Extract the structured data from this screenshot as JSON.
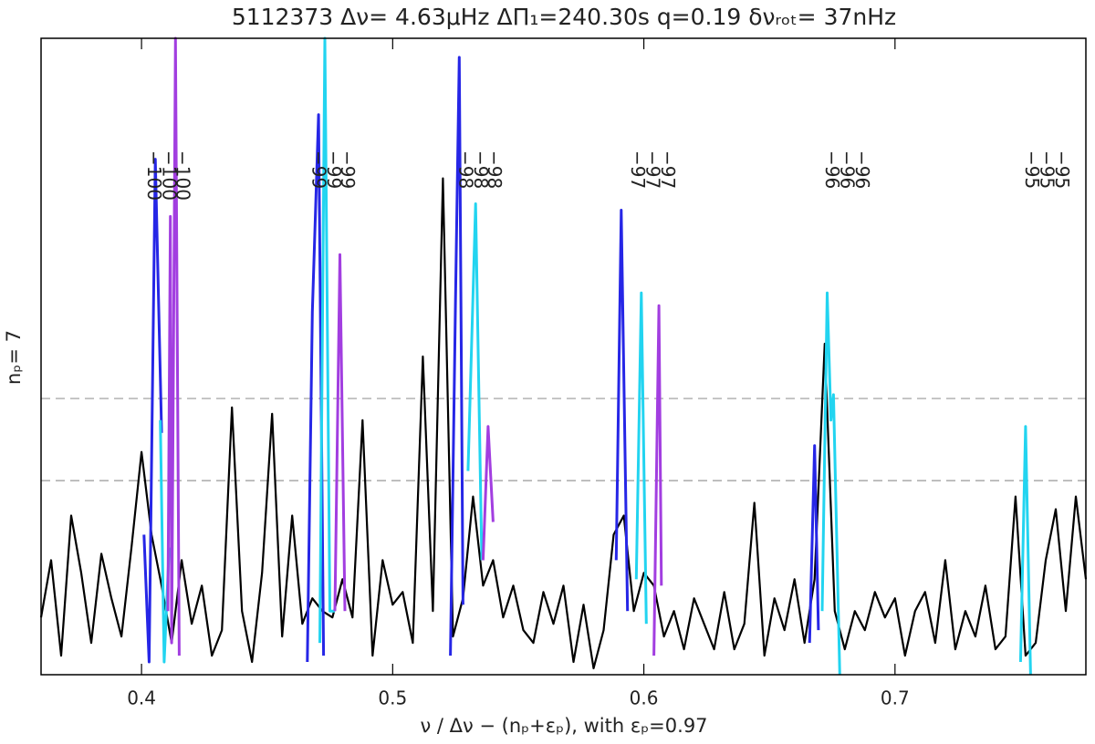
{
  "chart_data": {
    "type": "line",
    "title": "5112373 Δν= 4.63μHz ΔΠ₁=240.30s q=0.19 δνᵣₒₜ= 37nHz",
    "x_label": "ν / Δν − (nₚ+εₚ),  with εₚ=0.97",
    "y_label": "nₚ= 7",
    "xlim": [
      0.36,
      0.776
    ],
    "xticks": [
      0.4,
      0.5,
      0.6,
      0.7
    ],
    "ylim": [
      0,
      100
    ],
    "hlines": [
      43.4,
      30.5
    ],
    "series": [
      {
        "color": "#000000",
        "x": [
          0.36,
          0.364,
          0.368,
          0.372,
          0.376,
          0.38,
          0.384,
          0.388,
          0.392,
          0.396,
          0.4,
          0.404,
          0.408,
          0.412,
          0.416,
          0.42,
          0.424,
          0.428,
          0.432,
          0.436,
          0.44,
          0.444,
          0.448,
          0.452,
          0.456,
          0.46,
          0.464,
          0.468,
          0.472,
          0.476,
          0.48,
          0.484,
          0.488,
          0.492,
          0.496,
          0.5,
          0.504,
          0.508,
          0.512,
          0.516,
          0.52,
          0.524,
          0.528,
          0.532,
          0.536,
          0.54,
          0.544,
          0.548,
          0.552,
          0.556,
          0.56,
          0.564,
          0.568,
          0.572,
          0.576,
          0.58,
          0.584,
          0.588,
          0.592,
          0.596,
          0.6,
          0.604,
          0.608,
          0.612,
          0.616,
          0.62,
          0.624,
          0.628,
          0.632,
          0.636,
          0.64,
          0.644,
          0.648,
          0.652,
          0.656,
          0.66,
          0.664,
          0.668,
          0.672,
          0.676,
          0.68,
          0.684,
          0.688,
          0.692,
          0.696,
          0.7,
          0.704,
          0.708,
          0.712,
          0.716,
          0.72,
          0.724,
          0.728,
          0.732,
          0.736,
          0.74,
          0.744,
          0.748,
          0.752,
          0.756,
          0.76,
          0.764,
          0.768,
          0.772,
          0.776
        ],
        "values": [
          9,
          18,
          3,
          25,
          16,
          5,
          19,
          12,
          6,
          20,
          35,
          22,
          14,
          5,
          18,
          8,
          14,
          3,
          7,
          42,
          10,
          2,
          16,
          41,
          6,
          25,
          8,
          12,
          10,
          9,
          15,
          9,
          40,
          3,
          18,
          11,
          13,
          5,
          50,
          10,
          78,
          6,
          12,
          28,
          14,
          18,
          9,
          14,
          7,
          5,
          13,
          8,
          14,
          2,
          11,
          1,
          7,
          22,
          25,
          10,
          16,
          14,
          6,
          10,
          4,
          12,
          8,
          4,
          13,
          4,
          8,
          27,
          3,
          12,
          7,
          15,
          5,
          15,
          52,
          10,
          4,
          10,
          7,
          13,
          9,
          12,
          3,
          10,
          13,
          5,
          18,
          4,
          10,
          6,
          14,
          4,
          6,
          28,
          3,
          5,
          18,
          26,
          10,
          28,
          15
        ]
      },
      {
        "color": "#2626e6",
        "x": [
          0.401,
          0.403,
          0.4055,
          0.408,
          0.44,
          0.466,
          0.468,
          0.4705,
          0.4725,
          0.5,
          0.523,
          0.525,
          0.5265,
          0.528,
          0.56,
          0.589,
          0.591,
          0.5935,
          0.63,
          0.666,
          0.668,
          0.6695
        ],
        "values": [
          22,
          2,
          81,
          38,
          null,
          2,
          57,
          88,
          3,
          null,
          3,
          58,
          97,
          11,
          null,
          18,
          73,
          10,
          null,
          5,
          36,
          7
        ]
      },
      {
        "color": "#22d4f0",
        "x": [
          0.4075,
          0.409,
          0.411,
          0.44,
          0.471,
          0.473,
          0.475,
          0.477,
          0.5,
          0.53,
          0.533,
          0.5355,
          0.56,
          0.597,
          0.599,
          0.601,
          0.63,
          0.671,
          0.673,
          0.6745,
          0.6755,
          0.678,
          0.71,
          0.75,
          0.752,
          0.754
        ],
        "values": [
          40,
          2,
          20,
          null,
          5,
          100,
          10,
          10,
          null,
          32,
          74,
          18,
          null,
          15,
          60,
          8,
          null,
          10,
          60,
          40,
          44,
          0,
          null,
          2,
          39,
          0
        ]
      },
      {
        "color": "#a23ee0",
        "x": [
          0.4105,
          0.4115,
          0.412,
          0.4135,
          0.415,
          0.44,
          0.477,
          0.479,
          0.481,
          0.5,
          0.536,
          0.538,
          0.54,
          0.57,
          0.604,
          0.606,
          0.607
        ],
        "values": [
          10,
          72,
          5,
          100,
          3,
          null,
          10,
          66,
          10,
          null,
          18,
          39,
          24,
          null,
          3,
          58,
          14
        ]
      }
    ],
    "annotations": [
      {
        "text": "−100",
        "x": 0.4045,
        "color": "#2626e6"
      },
      {
        "text": "−100",
        "x": 0.4105,
        "color": "#22d4f0"
      },
      {
        "text": "−100",
        "x": 0.416,
        "color": "#a23ee0"
      },
      {
        "text": "−99",
        "x": 0.47,
        "color": "#2626e6"
      },
      {
        "text": "−99",
        "x": 0.476,
        "color": "#22d4f0"
      },
      {
        "text": "−99",
        "x": 0.4815,
        "color": "#a23ee0"
      },
      {
        "text": "−98",
        "x": 0.5285,
        "color": "#2626e6"
      },
      {
        "text": "−98",
        "x": 0.5345,
        "color": "#22d4f0"
      },
      {
        "text": "−98",
        "x": 0.54,
        "color": "#a23ee0"
      },
      {
        "text": "−97",
        "x": 0.597,
        "color": "#2626e6"
      },
      {
        "text": "−97",
        "x": 0.603,
        "color": "#22d4f0"
      },
      {
        "text": "−97",
        "x": 0.609,
        "color": "#a23ee0"
      },
      {
        "text": "−96",
        "x": 0.6745,
        "color": "#2626e6"
      },
      {
        "text": "−96",
        "x": 0.6805,
        "color": "#22d4f0"
      },
      {
        "text": "−96",
        "x": 0.6865,
        "color": "#a23ee0"
      },
      {
        "text": "−95",
        "x": 0.754,
        "color": "#2626e6"
      },
      {
        "text": "−95",
        "x": 0.76,
        "color": "#22d4f0"
      },
      {
        "text": "−95",
        "x": 0.766,
        "color": "#a23ee0"
      }
    ]
  }
}
